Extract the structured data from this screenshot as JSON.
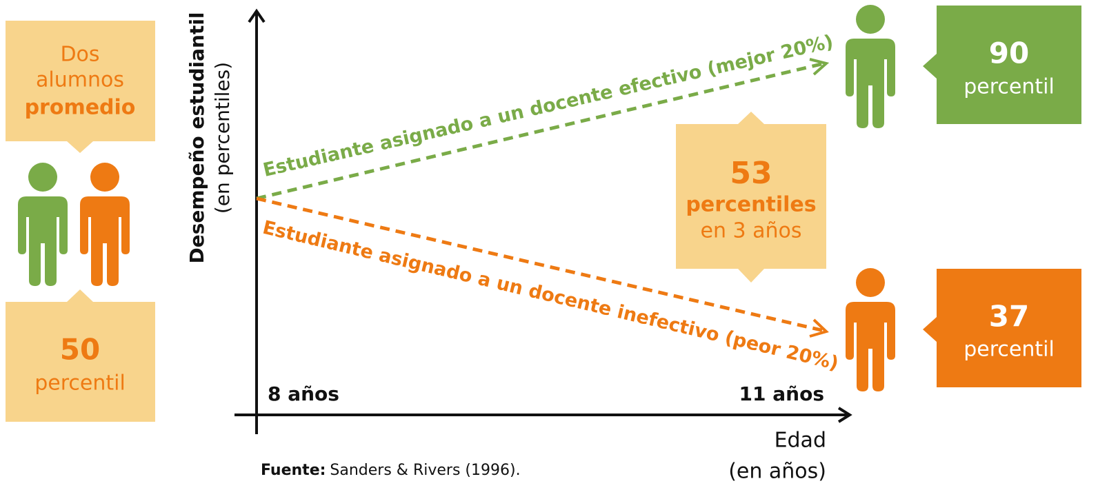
{
  "left": {
    "top_text": "Dos alumnos",
    "top_bold": "promedio",
    "value": "50",
    "unit": "percentil"
  },
  "y_axis": {
    "title": "Desempeño estudiantil",
    "subtitle": "(en percentiles)"
  },
  "x_axis": {
    "title": "Edad",
    "subtitle": "(en años)",
    "start": "8 años",
    "end": "11 años"
  },
  "lines": {
    "effective": "Estudiante asignado a un docente efectivo (mejor 20%)",
    "ineffective": "Estudiante asignado a un docente inefectivo (peor 20%)"
  },
  "middle": {
    "value": "53",
    "unit": "percentiles",
    "period": "en 3 años"
  },
  "right_top": {
    "value": "90",
    "unit": "percentil"
  },
  "right_bottom": {
    "value": "37",
    "unit": "percentil"
  },
  "source": {
    "label": "Fuente:",
    "text": "Sanders & Rivers (1996)."
  }
}
